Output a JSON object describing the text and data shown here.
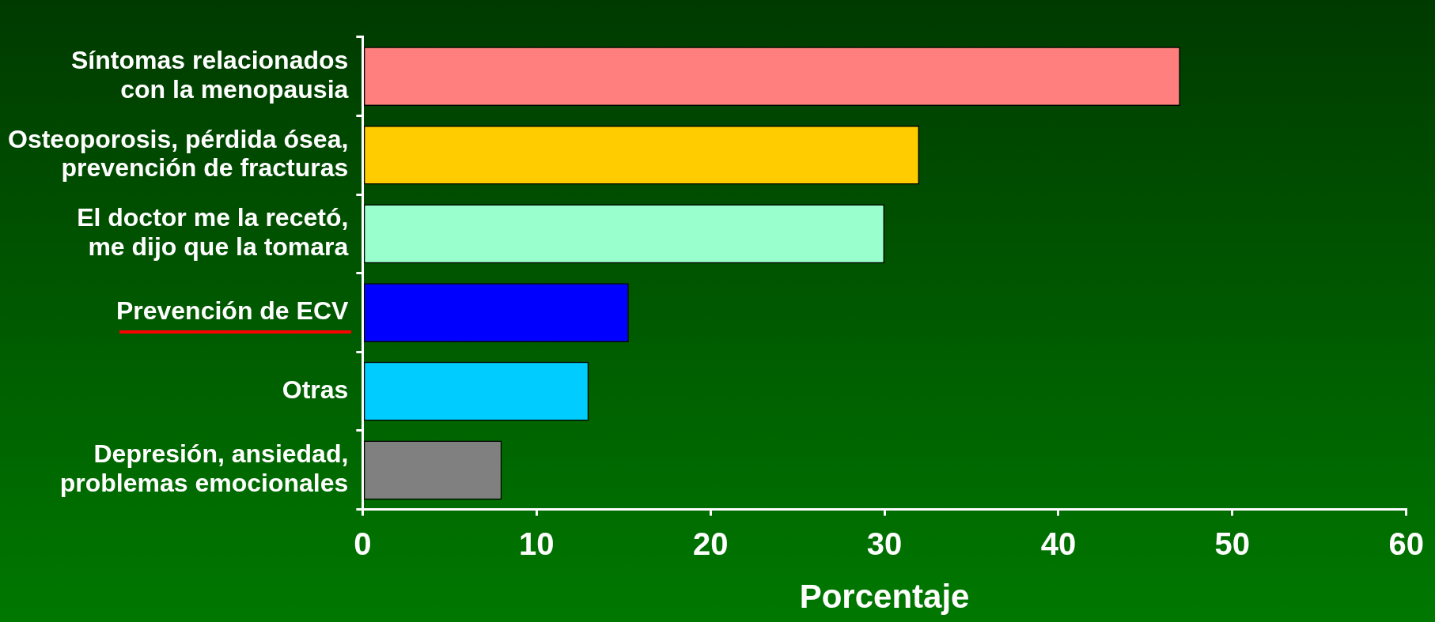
{
  "chart_data": {
    "type": "bar",
    "orientation": "horizontal",
    "xlabel": "Porcentaje",
    "categories": [
      "Síntomas relacionados\ncon la menopausia",
      "Osteoporosis, pérdida ósea,\nprevención de fracturas",
      "El doctor me la recetó,\nme dijo que la tomara",
      "Prevención de ECV",
      "Otras",
      "Depresión, ansiedad,\nproblemas emocionales"
    ],
    "values": [
      47,
      32,
      30,
      15.3,
      13,
      8
    ],
    "colors": [
      "#ff7f7f",
      "#ffcc00",
      "#99ffcc",
      "#0000ff",
      "#00ccff",
      "#808080"
    ],
    "xlim": [
      0,
      60
    ],
    "xticks": [
      0,
      10,
      20,
      30,
      40,
      50,
      60
    ]
  }
}
